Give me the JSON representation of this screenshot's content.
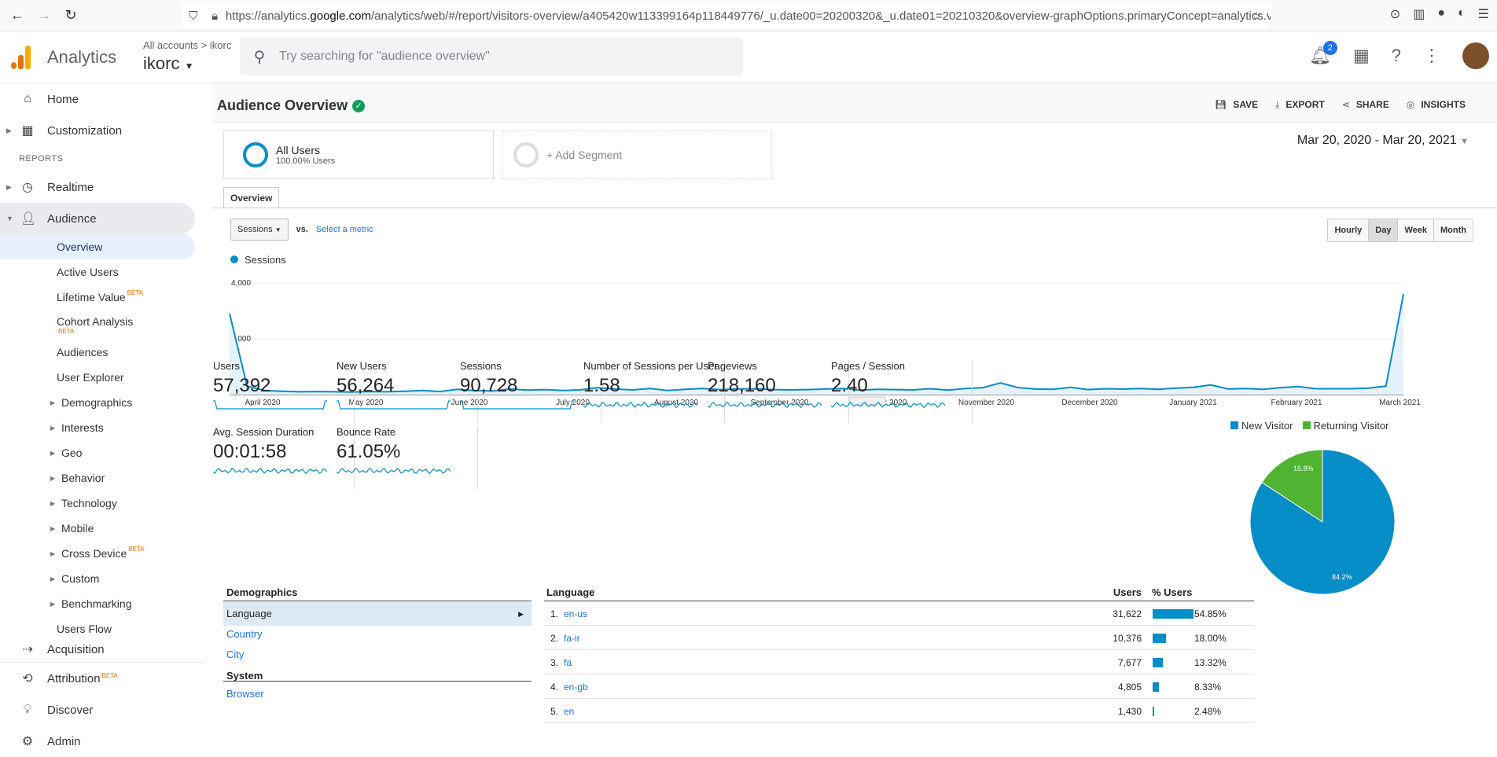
{
  "browser": {
    "url_prefix": "https://analytics.",
    "url_host": "google.com",
    "url_rest": "/analytics/web/#/report/visitors-overview/a405420w113399164p118449776/_u.date00=20200320&_u.date01=20210320&overview-graphOptions.primaryConcept=analytics.visits"
  },
  "header": {
    "app_title": "Analytics",
    "account_crumb": "All accounts > ikorc",
    "account_name": "ikorc",
    "search_placeholder": "Try searching for \"audience overview\"",
    "notification_count": "2"
  },
  "sidebar": {
    "home": "Home",
    "customization": "Customization",
    "reports_heading": "REPORTS",
    "realtime": "Realtime",
    "audience": "Audience",
    "audience_items": {
      "overview": "Overview",
      "active_users": "Active Users",
      "lifetime_value": "Lifetime Value",
      "cohort_analysis": "Cohort Analysis",
      "audiences": "Audiences",
      "user_explorer": "User Explorer",
      "demographics": "Demographics",
      "interests": "Interests",
      "geo": "Geo",
      "behavior": "Behavior",
      "technology": "Technology",
      "mobile": "Mobile",
      "cross_device": "Cross Device",
      "custom": "Custom",
      "benchmarking": "Benchmarking",
      "users_flow": "Users Flow"
    },
    "acquisition": "Acquisition",
    "attribution": "Attribution",
    "discover": "Discover",
    "admin": "Admin",
    "beta": "BETA"
  },
  "page": {
    "title": "Audience Overview",
    "actions": {
      "save": "SAVE",
      "export": "EXPORT",
      "share": "SHARE",
      "insights": "INSIGHTS"
    },
    "segment_name": "All Users",
    "segment_sub": "100.00% Users",
    "add_segment": "+ Add Segment",
    "date_range": "Mar 20, 2020 - Mar 20, 2021",
    "tab_overview": "Overview",
    "metric_select": "Sessions",
    "vs": "vs.",
    "select_metric": "Select a metric",
    "granularity": [
      "Hourly",
      "Day",
      "Week",
      "Month"
    ],
    "granularity_selected": "Day",
    "legend_sessions": "Sessions"
  },
  "chart_data": {
    "type": "line",
    "series": [
      {
        "name": "Sessions",
        "color": "#058dc7"
      }
    ],
    "y_ticks": [
      "4,000",
      "2,000"
    ],
    "ylim": [
      0,
      4000
    ],
    "x_ticks": [
      "April 2020",
      "May 2020",
      "June 2020",
      "July 2020",
      "August 2020",
      "September 2020",
      "October 2020",
      "November 2020",
      "December 2020",
      "January 2021",
      "February 2021",
      "March 2021"
    ],
    "values": [
      2900,
      300,
      150,
      120,
      100,
      110,
      100,
      90,
      110,
      100,
      120,
      150,
      110,
      190,
      140,
      130,
      200,
      160,
      180,
      150,
      170,
      250,
      200,
      170,
      220,
      150,
      190,
      220,
      180,
      200,
      210,
      180,
      170,
      180,
      200,
      220,
      160,
      190,
      180,
      170,
      210,
      160,
      220,
      250,
      420,
      250,
      200,
      190,
      260,
      180,
      210,
      200,
      220,
      190,
      230,
      260,
      350,
      200,
      220,
      190,
      250,
      290,
      210,
      210,
      210,
      230,
      300,
      3600
    ]
  },
  "kpis": [
    {
      "label": "Users",
      "value": "57,392"
    },
    {
      "label": "New Users",
      "value": "56,264"
    },
    {
      "label": "Sessions",
      "value": "90,728"
    },
    {
      "label": "Number of Sessions per User",
      "value": "1.58"
    },
    {
      "label": "Pageviews",
      "value": "218,160"
    },
    {
      "label": "Pages / Session",
      "value": "2.40"
    },
    {
      "label": "Avg. Session Duration",
      "value": "00:01:58"
    },
    {
      "label": "Bounce Rate",
      "value": "61.05%"
    }
  ],
  "pie": {
    "legend": [
      {
        "name": "New Visitor",
        "color": "#058dc7"
      },
      {
        "name": "Returning Visitor",
        "color": "#50b432"
      }
    ],
    "new_pct": 84.2,
    "returning_pct": 15.8,
    "new_label": "84.2%",
    "returning_label": "15.8%"
  },
  "demographics": {
    "heading": "Demographics",
    "items": [
      "Language",
      "Country",
      "City"
    ],
    "system_heading": "System",
    "system_items": [
      "Browser"
    ]
  },
  "language_table": {
    "col_language": "Language",
    "col_users": "Users",
    "col_pct": "% Users",
    "rows": [
      {
        "n": "1.",
        "lang": "en-us",
        "users": "31,622",
        "pct": "54.85%",
        "pct_val": 54.85
      },
      {
        "n": "2.",
        "lang": "fa-ir",
        "users": "10,376",
        "pct": "18.00%",
        "pct_val": 18.0
      },
      {
        "n": "3.",
        "lang": "fa",
        "users": "7,677",
        "pct": "13.32%",
        "pct_val": 13.32
      },
      {
        "n": "4.",
        "lang": "en-gb",
        "users": "4,805",
        "pct": "8.33%",
        "pct_val": 8.33
      },
      {
        "n": "5.",
        "lang": "en",
        "users": "1,430",
        "pct": "2.48%",
        "pct_val": 2.48
      }
    ]
  }
}
